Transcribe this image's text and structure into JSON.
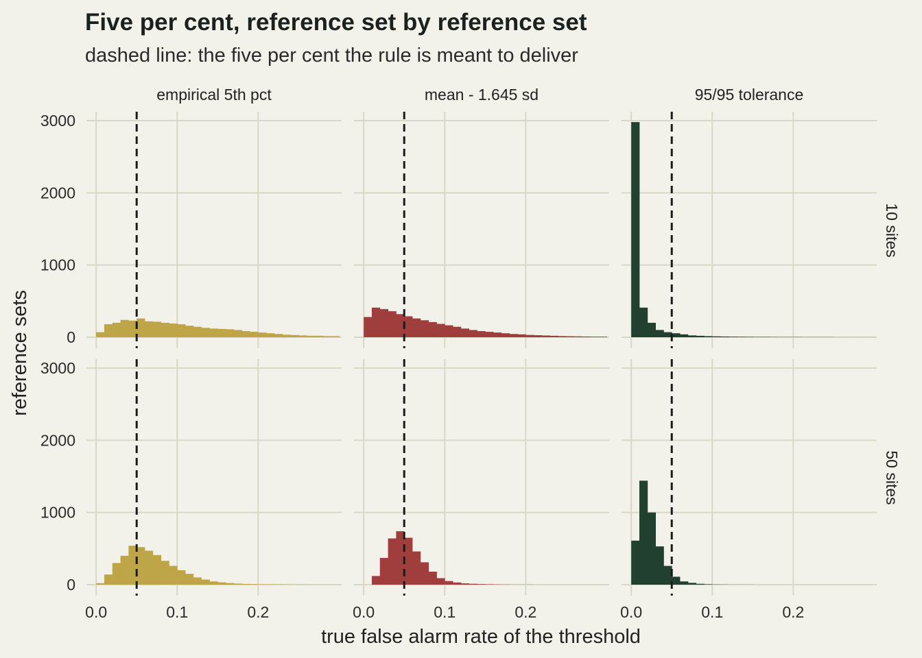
{
  "chart_data": {
    "type": "bar",
    "title": "Five per cent, reference set by reference set",
    "subtitle": "dashed line: the five per cent the rule is meant to deliver",
    "xlabel": "true false alarm rate of the threshold",
    "ylabel": "reference sets",
    "xlim": [
      -0.012,
      0.303
    ],
    "ylim": [
      0,
      3000
    ],
    "x_ticks": [
      0.0,
      0.1,
      0.2
    ],
    "x_tick_labels": [
      "0.0",
      "0.1",
      "0.2"
    ],
    "y_ticks": [
      0,
      1000,
      2000,
      3000
    ],
    "y_tick_labels": [
      "0",
      "1000",
      "2000",
      "3000"
    ],
    "reference_x": 0.05,
    "bin_start": 0.0,
    "bin_width": 0.01,
    "grid": true,
    "columns": [
      "empirical 5th pct",
      "mean - 1.645 sd",
      "95/95 tolerance"
    ],
    "rows": [
      "10 sites",
      "50 sites"
    ],
    "colors": {
      "empirical 5th pct": "#bea548",
      "mean - 1.645 sd": "#a03e3e",
      "95/95 tolerance": "#22402f",
      "background": "#f2f1ea",
      "grid": "#d9d7c6"
    },
    "panels": [
      {
        "row": "10 sites",
        "column": "empirical 5th pct",
        "counts": [
          70,
          180,
          200,
          240,
          230,
          260,
          220,
          215,
          200,
          190,
          180,
          160,
          145,
          130,
          120,
          115,
          110,
          100,
          85,
          75,
          65,
          55,
          45,
          35,
          30,
          25,
          20,
          20,
          15,
          15
        ]
      },
      {
        "row": "10 sites",
        "column": "mean - 1.645 sd",
        "counts": [
          280,
          410,
          390,
          360,
          320,
          290,
          260,
          235,
          210,
          185,
          165,
          145,
          120,
          100,
          85,
          75,
          65,
          55,
          45,
          40,
          32,
          28,
          24,
          20,
          16,
          14,
          12,
          10,
          8,
          8
        ]
      },
      {
        "row": "10 sites",
        "column": "95/95 tolerance",
        "counts": [
          2980,
          410,
          200,
          100,
          70,
          55,
          40,
          25,
          20,
          15,
          12,
          10,
          8,
          7,
          6,
          5,
          5,
          4,
          3,
          3,
          3,
          2,
          2,
          2,
          2,
          1,
          1,
          1,
          1,
          1
        ]
      },
      {
        "row": "50 sites",
        "column": "empirical 5th pct",
        "counts": [
          20,
          140,
          300,
          400,
          540,
          520,
          470,
          410,
          330,
          260,
          200,
          150,
          100,
          70,
          45,
          32,
          22,
          15,
          10,
          8,
          6,
          5,
          4,
          3,
          2,
          2,
          1,
          1,
          1,
          1
        ]
      },
      {
        "row": "50 sites",
        "column": "mean - 1.645 sd",
        "counts": [
          0,
          120,
          370,
          640,
          740,
          650,
          460,
          310,
          180,
          90,
          50,
          30,
          18,
          12,
          8,
          5,
          3,
          2,
          1,
          1,
          1,
          0,
          0,
          0,
          0,
          0,
          0,
          0,
          0,
          0
        ]
      },
      {
        "row": "50 sites",
        "column": "95/95 tolerance",
        "counts": [
          610,
          1440,
          1000,
          530,
          260,
          110,
          45,
          25,
          12,
          6,
          3,
          2,
          1,
          1,
          1,
          0,
          0,
          0,
          0,
          0,
          0,
          0,
          0,
          0,
          0,
          0,
          0,
          0,
          0,
          0
        ]
      }
    ]
  }
}
